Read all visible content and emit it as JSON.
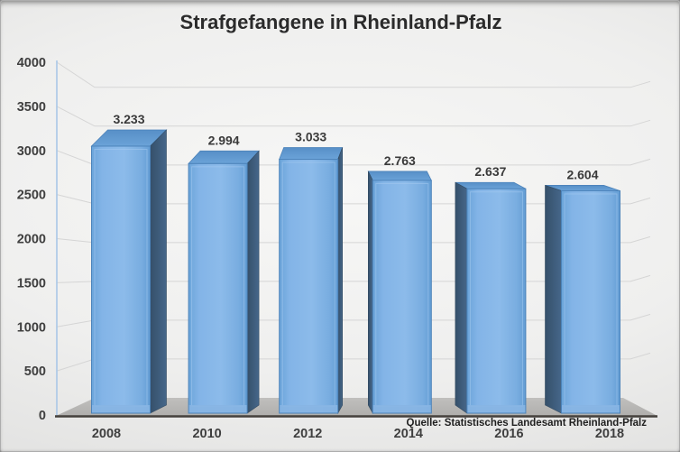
{
  "title": "Strafgefangene in Rheinland-Pfalz",
  "source_note": "Quelle: Statistisches Landesamt Rheinland-Pfalz",
  "chart_data": {
    "type": "bar",
    "style": "3d-perspective",
    "title": "Strafgefangene in Rheinland-Pfalz",
    "categories": [
      "2008",
      "2010",
      "2012",
      "2014",
      "2016",
      "2018"
    ],
    "values": [
      3233,
      2994,
      3033,
      2763,
      2637,
      2604
    ],
    "value_labels": [
      "3.233",
      "2.994",
      "3.033",
      "2.763",
      "2.637",
      "2.604"
    ],
    "xlabel": "",
    "ylabel": "",
    "ylim": [
      0,
      4000
    ],
    "yticks": [
      0,
      500,
      1000,
      1500,
      2000,
      2500,
      3000,
      3500,
      4000
    ],
    "ytick_labels": [
      "0",
      "500",
      "1000",
      "1500",
      "2000",
      "2500",
      "3000",
      "3500",
      "4000"
    ],
    "grid": true,
    "legend": false,
    "source": "Quelle: Statistisches Landesamt Rheinland-Pfalz"
  },
  "colors": {
    "bar_front": "#79ade0",
    "bar_front_light": "#8cbbea",
    "bar_front_dark": "#639dd4",
    "bar_edge": "#4c83ba",
    "bar_top": "#5f96cd",
    "bar_side_dark": "#35506a",
    "bar_side_light": "#46678a",
    "bar_bottom_bevel": "#87b5e3",
    "floor": "#b6b5b3",
    "baseline": "#44403c",
    "axis_line": "#a9c7e7",
    "gridline": "#d5d5d5",
    "text": "#3f3f3f",
    "title_text": "#2b2b2b"
  }
}
